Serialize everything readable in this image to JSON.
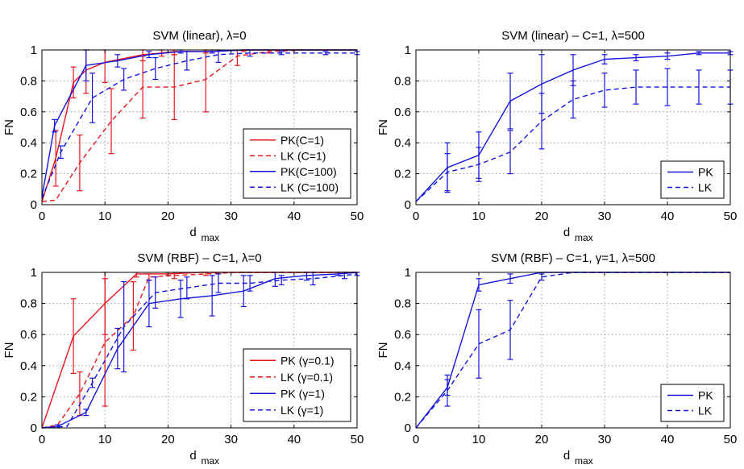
{
  "figure": {
    "colors": {
      "red": "#e8141c",
      "blue": "#1414e0"
    }
  },
  "chart_data": [
    {
      "type": "line",
      "title": "SVM (linear), λ=0",
      "xlabel_main": "d",
      "xlabel_sub": "max",
      "ylabel": "FN",
      "xlim": [
        0,
        50
      ],
      "ylim": [
        0,
        1
      ],
      "xticks": [
        "0",
        "10",
        "20",
        "30",
        "40",
        "50"
      ],
      "yticks": [
        "0",
        "0.2",
        "0.4",
        "0.6",
        "0.8",
        "1"
      ],
      "grid": true,
      "legend_position": "bottom-right",
      "series": [
        {
          "name": "PK(C=1)",
          "color": "#e8141c",
          "dash": "solid",
          "x": [
            0,
            2.2,
            5,
            7,
            10,
            16,
            19,
            21,
            26,
            32,
            36,
            42,
            45,
            50
          ],
          "y": [
            0.02,
            0.3,
            0.79,
            0.87,
            0.92,
            0.97,
            0.98,
            0.99,
            0.99,
            1.0,
            1.0,
            1.0,
            1.0,
            1.0
          ],
          "err": [
            0,
            0.18,
            0.1,
            0.15,
            0.13,
            0.04,
            0.02,
            0.02,
            0.01,
            0.01,
            0.0,
            0.0,
            0.0,
            0.0
          ]
        },
        {
          "name": "LK (C=1)",
          "color": "#e8141c",
          "dash": "dashed",
          "x": [
            0,
            2.2,
            6,
            11,
            16,
            21,
            26,
            31,
            36,
            42,
            47,
            50
          ],
          "y": [
            0.02,
            0.03,
            0.27,
            0.54,
            0.76,
            0.76,
            0.81,
            0.96,
            0.99,
            1.0,
            1.0,
            1.0
          ],
          "err": [
            0,
            0,
            0.18,
            0.21,
            0.2,
            0.21,
            0.21,
            0.06,
            0.01,
            0,
            0,
            0
          ]
        },
        {
          "name": "PK(C=100)",
          "color": "#1414e0",
          "dash": "solid",
          "x": [
            0,
            2,
            7,
            12,
            17,
            22,
            27,
            32,
            38,
            45,
            50
          ],
          "y": [
            0.05,
            0.51,
            0.9,
            0.93,
            0.97,
            0.99,
            0.99,
            1.0,
            1.0,
            1.0,
            1.0
          ],
          "err": [
            0,
            0.04,
            0.1,
            0.04,
            0.02,
            0.01,
            0.01,
            0,
            0,
            0,
            0
          ]
        },
        {
          "name": "LK (C=100)",
          "color": "#1414e0",
          "dash": "dashed",
          "x": [
            0,
            3,
            8,
            13,
            18,
            23,
            28,
            33,
            38,
            45,
            50
          ],
          "y": [
            0.04,
            0.34,
            0.69,
            0.81,
            0.88,
            0.93,
            0.97,
            0.98,
            0.98,
            0.98,
            0.98
          ],
          "err": [
            0,
            0.04,
            0.16,
            0.07,
            0.07,
            0.06,
            0.05,
            0.02,
            0.01,
            0.01,
            0.01
          ]
        }
      ]
    },
    {
      "type": "line",
      "title": "SVM (linear) – C=1, λ=500",
      "xlabel_main": "d",
      "xlabel_sub": "max",
      "ylabel": "FN",
      "xlim": [
        0,
        50
      ],
      "ylim": [
        0,
        1
      ],
      "xticks": [
        "0",
        "10",
        "20",
        "30",
        "40",
        "50"
      ],
      "yticks": [
        "0",
        "0.2",
        "0.4",
        "0.6",
        "0.8",
        "1"
      ],
      "grid": true,
      "legend_position": "bottom-right",
      "series": [
        {
          "name": "PK",
          "color": "#1414e0",
          "dash": "solid",
          "x": [
            0,
            5,
            10,
            15,
            20,
            25,
            30,
            35,
            40,
            45,
            50
          ],
          "y": [
            0.02,
            0.24,
            0.32,
            0.67,
            0.78,
            0.87,
            0.94,
            0.95,
            0.96,
            0.98,
            0.98
          ],
          "err": [
            0,
            0.16,
            0.15,
            0.18,
            0.19,
            0.1,
            0.03,
            0.02,
            0.02,
            0.01,
            0.01
          ]
        },
        {
          "name": "LK",
          "color": "#1414e0",
          "dash": "dashed",
          "x": [
            0,
            5,
            10,
            15,
            20,
            25,
            30,
            35,
            40,
            45,
            50
          ],
          "y": [
            0.02,
            0.21,
            0.26,
            0.34,
            0.54,
            0.68,
            0.74,
            0.76,
            0.76,
            0.76,
            0.76
          ],
          "err": [
            0,
            0.12,
            0.11,
            0.14,
            0.18,
            0.12,
            0.11,
            0.11,
            0.12,
            0.11,
            0.11
          ]
        }
      ]
    },
    {
      "type": "line",
      "title": "SVM (RBF) – C=1, λ=0",
      "xlabel_main": "d",
      "xlabel_sub": "max",
      "ylabel": "FN",
      "xlim": [
        0,
        50
      ],
      "ylim": [
        0,
        1
      ],
      "xticks": [
        "0",
        "10",
        "20",
        "30",
        "40",
        "50"
      ],
      "yticks": [
        "0",
        "0.2",
        "0.4",
        "0.6",
        "0.8",
        "1"
      ],
      "grid": true,
      "legend_position": "bottom-right",
      "series": [
        {
          "name": "PK (γ=0.1)",
          "color": "#e8141c",
          "dash": "solid",
          "x": [
            0,
            5,
            10,
            15,
            20,
            25,
            30,
            35,
            40,
            45,
            50
          ],
          "y": [
            0.0,
            0.59,
            0.8,
            0.99,
            0.99,
            1.0,
            1.0,
            1.0,
            1.0,
            1.0,
            1.0
          ],
          "err": [
            0,
            0.24,
            0.2,
            0.02,
            0.01,
            0,
            0,
            0,
            0,
            0,
            0
          ]
        },
        {
          "name": "LK (γ=0.1)",
          "color": "#e8141c",
          "dash": "dashed",
          "x": [
            0,
            2.5,
            6,
            10,
            14.5,
            17,
            21,
            26,
            31,
            36,
            42,
            47,
            50
          ],
          "y": [
            0.0,
            0.02,
            0.22,
            0.55,
            0.72,
            0.97,
            0.98,
            0.99,
            1.0,
            1.0,
            1.0,
            1.0,
            1.0
          ],
          "err": [
            0,
            0,
            0.14,
            0.41,
            0.22,
            0.02,
            0.02,
            0.01,
            0,
            0,
            0,
            0,
            0
          ]
        },
        {
          "name": "PK (γ=1)",
          "color": "#1414e0",
          "dash": "solid",
          "x": [
            0,
            2.5,
            7,
            12,
            17,
            22,
            27,
            32,
            37,
            42,
            47,
            50
          ],
          "y": [
            0.0,
            0.01,
            0.1,
            0.51,
            0.8,
            0.83,
            0.85,
            0.88,
            0.96,
            0.98,
            0.99,
            1.0
          ],
          "err": [
            0,
            0.01,
            0.02,
            0.13,
            0.15,
            0.12,
            0.13,
            0.1,
            0.05,
            0.03,
            0.01,
            0
          ]
        },
        {
          "name": "LK (γ=1)",
          "color": "#1414e0",
          "dash": "dashed",
          "x": [
            0,
            4,
            8,
            13,
            18,
            23,
            28,
            33,
            38,
            43,
            48,
            50
          ],
          "y": [
            0.0,
            0.01,
            0.29,
            0.65,
            0.87,
            0.9,
            0.93,
            0.93,
            0.95,
            0.96,
            0.98,
            0.99
          ],
          "err": [
            0,
            0,
            0.03,
            0.29,
            0.1,
            0.07,
            0.06,
            0.05,
            0.03,
            0.04,
            0.02,
            0.01
          ]
        }
      ]
    },
    {
      "type": "line",
      "title": "SVM (RBF) – C=1, γ=1, λ=500",
      "xlabel_main": "d",
      "xlabel_sub": "max",
      "ylabel": "FN",
      "xlim": [
        0,
        50
      ],
      "ylim": [
        0,
        1
      ],
      "xticks": [
        "0",
        "10",
        "20",
        "30",
        "40",
        "50"
      ],
      "yticks": [
        "0",
        "0.2",
        "0.4",
        "0.6",
        "0.8",
        "1"
      ],
      "grid": true,
      "legend_position": "bottom-right",
      "series": [
        {
          "name": "PK",
          "color": "#1414e0",
          "dash": "solid",
          "x": [
            0,
            5,
            10,
            15,
            20,
            25,
            30,
            35,
            40,
            45,
            50
          ],
          "y": [
            0.0,
            0.26,
            0.92,
            0.96,
            1.0,
            1.0,
            1.0,
            1.0,
            1.0,
            1.0,
            1.0
          ],
          "err": [
            0,
            0.05,
            0.04,
            0.03,
            0.0,
            0,
            0,
            0,
            0,
            0,
            0
          ]
        },
        {
          "name": "LK",
          "color": "#1414e0",
          "dash": "dashed",
          "x": [
            0,
            5,
            10,
            15,
            20,
            25,
            30,
            35,
            40,
            45,
            50
          ],
          "y": [
            0.0,
            0.24,
            0.54,
            0.63,
            0.97,
            1.0,
            1.0,
            1.0,
            1.0,
            1.0,
            1.0
          ],
          "err": [
            0,
            0.1,
            0.22,
            0.19,
            0.02,
            0,
            0,
            0,
            0,
            0,
            0
          ]
        }
      ]
    }
  ]
}
